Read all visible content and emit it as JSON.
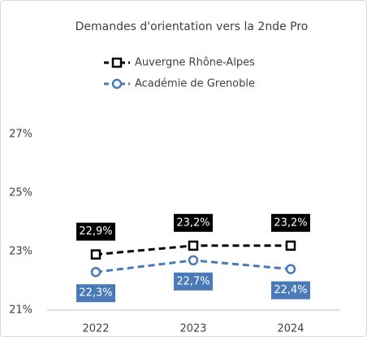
{
  "chart_data": {
    "type": "line",
    "title": "Demandes d'orientation vers la 2nde Pro",
    "categories": [
      "2022",
      "2023",
      "2024"
    ],
    "series": [
      {
        "name": "Auvergne Rhône-Alpes",
        "color": "#000000",
        "marker": "square",
        "values": [
          22.9,
          23.2,
          23.2
        ],
        "value_labels": [
          "22,9%",
          "23,2%",
          "23,2%"
        ]
      },
      {
        "name": "Académie de Grenoble",
        "color": "#4a7ab8",
        "marker": "circle",
        "values": [
          22.3,
          22.7,
          22.4
        ],
        "value_labels": [
          "22,3%",
          "22,7%",
          "22,4%"
        ]
      }
    ],
    "ylim": [
      21,
      28
    ],
    "yticks": [
      {
        "value": 21,
        "label": "21%"
      },
      {
        "value": 23,
        "label": "23%"
      },
      {
        "value": 25,
        "label": "25%"
      },
      {
        "value": 27,
        "label": "27%"
      }
    ],
    "grid": false,
    "legend": "top"
  }
}
